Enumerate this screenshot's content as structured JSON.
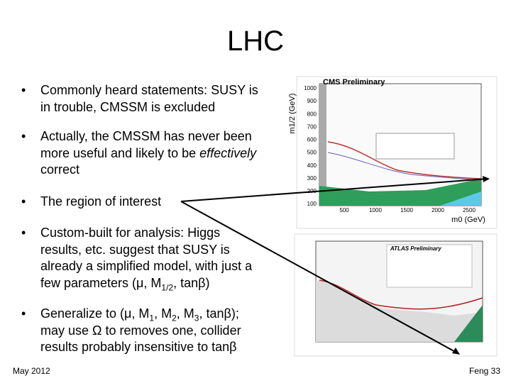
{
  "title": "LHC",
  "bullets": [
    {
      "top": 116,
      "lines": [
        [
          "Commonly heard statements: SUSY is"
        ],
        [
          "in trouble, CMSSM is excluded"
        ]
      ]
    },
    {
      "top": 181,
      "lines": [
        [
          "Actually, the CMSSM has never been"
        ],
        [
          "more useful and likely to be ",
          {
            "em": "effectively"
          }
        ],
        [
          "correct"
        ]
      ]
    },
    {
      "top": 273,
      "lines": [
        [
          "The region of interest"
        ]
      ]
    },
    {
      "top": 317,
      "lines": [
        [
          "Custom-built for analysis: Higgs"
        ],
        [
          "results, etc. suggest that SUSY is"
        ],
        [
          "already a simplified model, with just a"
        ],
        [
          "few parameters (μ, M",
          {
            "sub": "1/2"
          },
          ", tanβ)"
        ]
      ]
    },
    {
      "top": 431,
      "lines": [
        [
          "Generalize to (μ, M",
          {
            "sub": "1"
          },
          ", M",
          {
            "sub": "2"
          },
          ", M",
          {
            "sub": "3"
          },
          ", tanβ);"
        ],
        [
          "may use Ω to removes one, collider"
        ],
        [
          "results probably insensitive to tanβ"
        ]
      ]
    }
  ],
  "figures": {
    "cms": {
      "title": "CMS Preliminary",
      "y_label": "m1/2 (GeV)",
      "x_label": "m0 (GeV)",
      "yticks": [
        "1000",
        "900",
        "800",
        "700",
        "600",
        "500",
        "400",
        "300",
        "200",
        "100"
      ],
      "xticks": [
        "500",
        "1000",
        "1500",
        "2000",
        "2500"
      ]
    },
    "atlas": {
      "title": "ATLAS Preliminary"
    }
  },
  "footer": {
    "left": "May 2012",
    "right": "Feng 33"
  }
}
